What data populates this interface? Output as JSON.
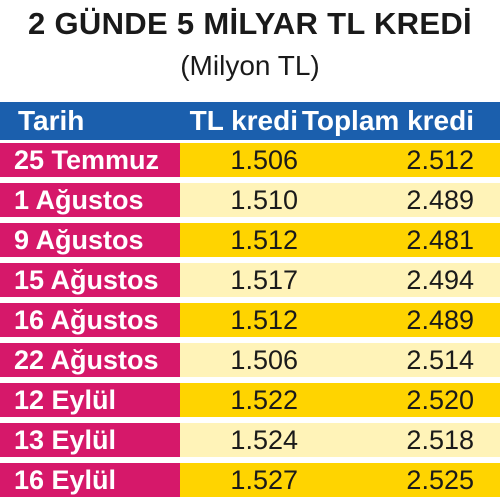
{
  "chart_data": {
    "type": "table",
    "title": "2 GÜNDE 5 MİLYAR TL KREDİ",
    "subtitle": "(Milyon TL)",
    "columns": [
      "Tarih",
      "TL kredi",
      "Toplam kredi"
    ],
    "rows": [
      {
        "date": "25 Temmuz",
        "tl": "1.506",
        "total": "2.512"
      },
      {
        "date": "1 Ağustos",
        "tl": "1.510",
        "total": "2.489"
      },
      {
        "date": "9 Ağustos",
        "tl": "1.512",
        "total": "2.481"
      },
      {
        "date": "15 Ağustos",
        "tl": "1.517",
        "total": "2.494"
      },
      {
        "date": "16 Ağustos",
        "tl": "1.512",
        "total": "2.489"
      },
      {
        "date": "22 Ağustos",
        "tl": "1.506",
        "total": "2.514"
      },
      {
        "date": "12 Eylül",
        "tl": "1.522",
        "total": "2.520"
      },
      {
        "date": "13 Eylül",
        "tl": "1.524",
        "total": "2.518"
      },
      {
        "date": "16 Eylül",
        "tl": "1.527",
        "total": "2.525"
      }
    ]
  },
  "colors": {
    "header_bg": "#1b5fad",
    "date_bg": "#d6186a",
    "row_bg_dark": "#ffd400",
    "row_bg_light": "#fff3b8"
  }
}
